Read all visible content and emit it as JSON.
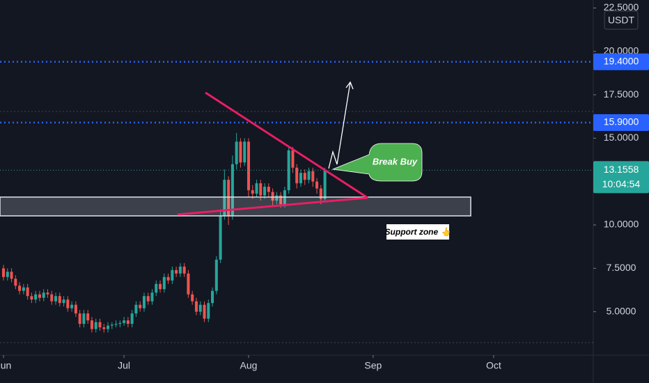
{
  "chart_data": {
    "type": "candlestick",
    "currency": "USDT",
    "up_color": "#26a69a",
    "down_color": "#ef5350",
    "x": [
      0,
      1,
      2,
      3,
      4,
      5,
      6,
      7,
      8,
      9,
      10,
      11,
      12,
      13,
      14,
      15,
      16,
      17,
      18,
      19,
      20,
      21,
      22,
      23,
      24,
      25,
      26,
      27,
      28,
      29,
      30,
      31,
      32,
      33,
      34,
      35,
      36,
      37,
      38,
      39,
      40,
      41,
      42,
      43,
      44,
      45,
      46,
      47,
      48,
      49,
      50,
      51,
      52,
      53,
      54,
      55,
      56,
      57,
      58,
      59,
      60,
      61,
      62,
      63,
      64,
      65,
      66,
      67,
      68,
      69,
      70,
      71,
      72,
      73,
      74,
      75,
      76,
      77,
      78,
      79,
      80
    ],
    "open": [
      7.5,
      7.0,
      7.3,
      6.9,
      6.5,
      6.2,
      6.4,
      5.9,
      5.7,
      6.0,
      5.8,
      6.1,
      6.0,
      5.6,
      5.9,
      5.5,
      5.7,
      5.2,
      5.4,
      4.9,
      4.3,
      4.9,
      4.5,
      4.0,
      4.4,
      4.1,
      4.0,
      4.2,
      4.25,
      4.3,
      4.35,
      4.5,
      4.3,
      4.9,
      5.4,
      5.2,
      5.9,
      5.6,
      6.1,
      6.6,
      6.3,
      7.0,
      6.8,
      7.4,
      7.2,
      7.6,
      7.2,
      6.0,
      5.6,
      5.0,
      5.4,
      4.6,
      5.5,
      6.2,
      8.0,
      10.5,
      12.6,
      10.5,
      13.5,
      14.8,
      13.6,
      14.8,
      12.0,
      11.8,
      12.4,
      11.7,
      12.2,
      11.9,
      11.4,
      11.7,
      11.2,
      12.0,
      14.3,
      13.3,
      12.4,
      13.0,
      12.6,
      13.1,
      12.5,
      12.1,
      11.5
    ],
    "high": [
      7.7,
      7.5,
      7.5,
      7.1,
      6.7,
      6.6,
      6.6,
      6.1,
      6.2,
      6.2,
      6.3,
      6.3,
      6.2,
      6.1,
      6.1,
      5.9,
      5.9,
      5.6,
      5.6,
      5.1,
      5.1,
      5.1,
      4.7,
      4.6,
      4.6,
      4.3,
      4.4,
      4.4,
      4.5,
      4.5,
      4.7,
      4.7,
      5.1,
      5.6,
      5.6,
      6.1,
      6.1,
      6.3,
      6.8,
      6.8,
      7.2,
      7.2,
      7.6,
      7.6,
      7.8,
      7.8,
      7.4,
      6.2,
      5.8,
      5.6,
      5.6,
      5.7,
      6.4,
      8.2,
      10.9,
      13.2,
      12.8,
      14.0,
      15.3,
      15.0,
      15.0,
      15.0,
      12.3,
      12.6,
      12.6,
      12.4,
      12.4,
      12.1,
      11.9,
      11.9,
      12.2,
      14.5,
      14.5,
      13.5,
      13.2,
      13.2,
      13.3,
      13.3,
      12.7,
      12.3,
      13.3
    ],
    "low": [
      6.8,
      6.8,
      6.7,
      6.3,
      6.0,
      6.0,
      5.7,
      5.5,
      5.5,
      5.6,
      5.6,
      5.8,
      5.4,
      5.4,
      5.3,
      5.3,
      5.0,
      5.0,
      4.7,
      4.1,
      4.1,
      4.3,
      3.8,
      3.8,
      3.9,
      3.8,
      3.8,
      4.0,
      4.1,
      4.1,
      4.2,
      4.1,
      4.1,
      4.7,
      5.0,
      5.0,
      5.4,
      5.4,
      5.9,
      6.1,
      6.1,
      6.6,
      6.6,
      7.0,
      7.0,
      7.0,
      5.8,
      5.4,
      4.8,
      4.8,
      4.4,
      4.4,
      5.3,
      6.0,
      7.8,
      10.3,
      10.0,
      10.3,
      13.2,
      13.3,
      13.4,
      11.6,
      11.5,
      11.6,
      11.4,
      11.5,
      11.6,
      11.1,
      11.2,
      11.0,
      11.0,
      11.8,
      13.0,
      12.1,
      12.2,
      12.3,
      12.4,
      12.2,
      11.8,
      11.2,
      11.3
    ],
    "close": [
      7.0,
      7.3,
      6.9,
      6.5,
      6.2,
      6.4,
      5.9,
      5.7,
      6.0,
      5.8,
      6.1,
      6.0,
      5.6,
      5.9,
      5.5,
      5.7,
      5.2,
      5.4,
      4.9,
      4.3,
      4.9,
      4.5,
      4.0,
      4.4,
      4.1,
      4.0,
      4.2,
      4.25,
      4.3,
      4.35,
      4.5,
      4.3,
      4.9,
      5.4,
      5.2,
      5.9,
      5.6,
      6.1,
      6.6,
      6.3,
      7.0,
      6.8,
      7.4,
      7.2,
      7.6,
      7.2,
      6.0,
      5.6,
      5.0,
      5.4,
      4.6,
      5.5,
      6.2,
      8.0,
      10.5,
      12.6,
      10.5,
      13.5,
      14.8,
      13.6,
      14.8,
      12.0,
      11.8,
      12.4,
      11.7,
      12.2,
      11.9,
      11.4,
      11.7,
      11.2,
      12.0,
      14.3,
      13.3,
      12.4,
      13.0,
      12.6,
      13.1,
      12.5,
      12.1,
      11.5,
      13.1558
    ],
    "xlim": [
      -0.87,
      146.8
    ],
    "xticks": [
      {
        "value": 0,
        "label": "Jun"
      },
      {
        "value": 30,
        "label": "Jul"
      },
      {
        "value": 61,
        "label": "Aug"
      },
      {
        "value": 92,
        "label": "Sep"
      },
      {
        "value": 122,
        "label": "Oct"
      }
    ],
    "ylim": [
      3.22,
      22.96
    ],
    "yticks": [
      {
        "value": 5,
        "label": "5.0000"
      },
      {
        "value": 7.5,
        "label": "7.5000"
      },
      {
        "value": 10,
        "label": "10.0000"
      },
      {
        "value": 15,
        "label": "15.0000"
      },
      {
        "value": 17.5,
        "label": "17.5000"
      },
      {
        "value": 20,
        "label": "20.0000"
      },
      {
        "value": 22.5,
        "label": "22.5000"
      }
    ],
    "levels": [
      {
        "value": 19.4,
        "label": "19.4000",
        "color": "#2962ff"
      },
      {
        "value": 15.9,
        "label": "15.9000",
        "color": "#2962ff"
      }
    ],
    "last_price": {
      "value": 13.1558,
      "label": "13.1558",
      "countdown": "10:04:54",
      "color": "#26a69a"
    },
    "annotations": [
      "Break Buy",
      "Support zone 👆"
    ]
  }
}
